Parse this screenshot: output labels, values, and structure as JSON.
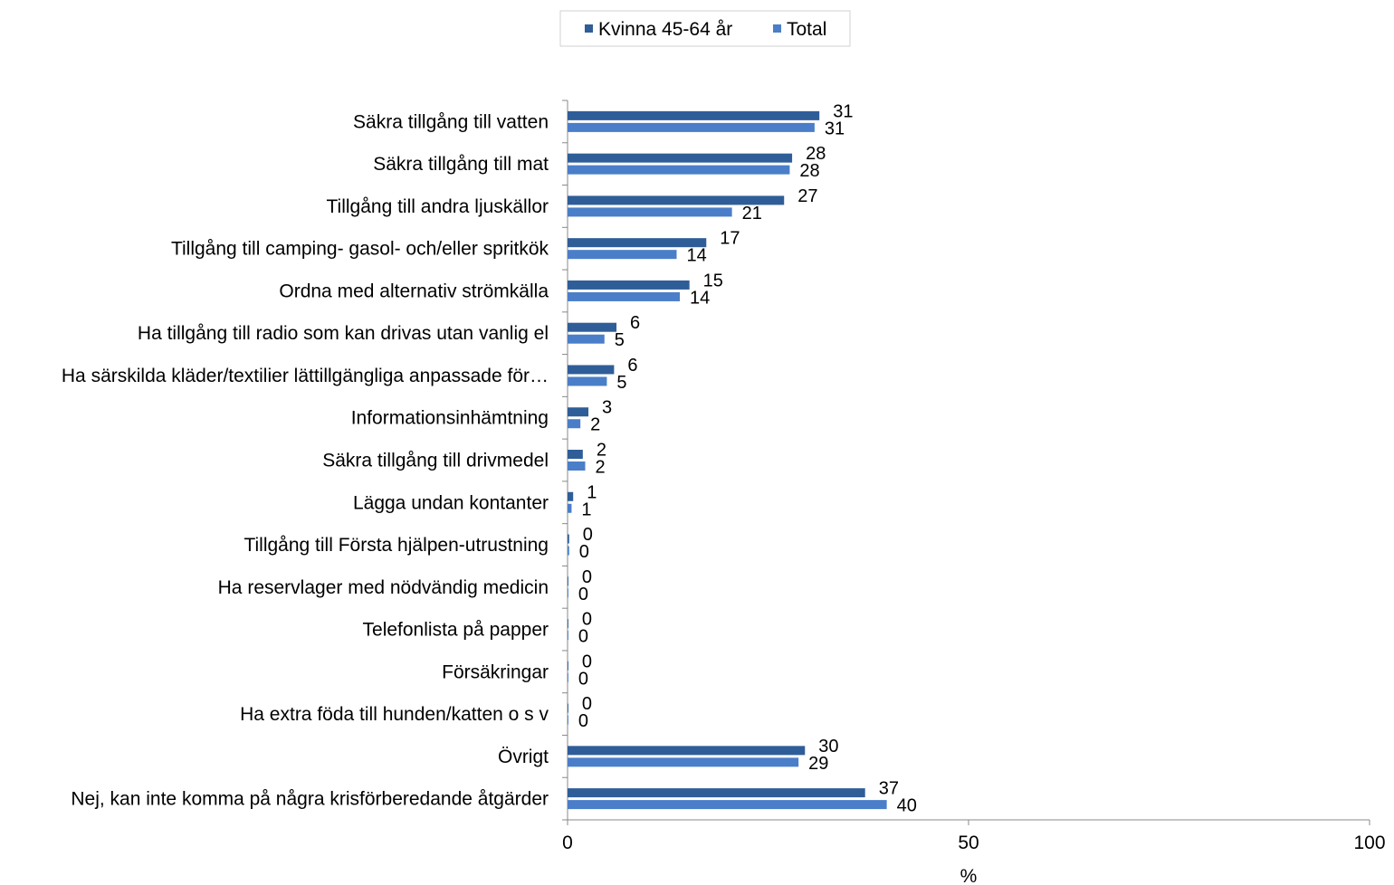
{
  "chart_data": {
    "type": "bar",
    "orientation": "horizontal",
    "categories": [
      "Säkra tillgång till vatten",
      "Säkra tillgång till mat",
      "Tillgång till andra ljuskällor",
      "Tillgång till camping- gasol- och/eller spritkök",
      "Ordna med alternativ strömkälla",
      "Ha tillgång till radio som kan drivas utan vanlig el",
      "Ha särskilda kläder/textilier lättillgängliga anpassade för…",
      "Informationsinhämtning",
      "Säkra tillgång till drivmedel",
      "Lägga undan kontanter",
      "Tillgång till Första hjälpen-utrustning",
      "Ha reservlager med nödvändig medicin",
      "Telefonlista på papper",
      "Försäkringar",
      "Ha extra föda till hunden/katten o s v",
      "Övrigt",
      "Nej, kan inte komma på några krisförberedande åtgärder"
    ],
    "series": [
      {
        "name": "Kvinna 45-64 år",
        "color": "#2f5d98",
        "values": [
          31.4,
          28.0,
          27.0,
          17.3,
          15.2,
          6.1,
          5.8,
          2.6,
          1.9,
          0.7,
          0.2,
          0.1,
          0.1,
          0.1,
          0.1,
          29.6,
          37.1
        ],
        "labels": [
          "31",
          "28",
          "27",
          "17",
          "15",
          "6",
          "6",
          "3",
          "2",
          "1",
          "0",
          "0",
          "0",
          "0",
          "0",
          "30",
          "37"
        ]
      },
      {
        "name": "Total",
        "color": "#4a7ec8",
        "values": [
          30.8,
          27.7,
          20.5,
          13.6,
          14.0,
          4.6,
          4.9,
          1.6,
          2.2,
          0.5,
          0.2,
          0.1,
          0.1,
          0.1,
          0.1,
          28.8,
          39.8
        ],
        "labels": [
          "31",
          "28",
          "21",
          "14",
          "14",
          "5",
          "5",
          "2",
          "2",
          "1",
          "0",
          "0",
          "0",
          "0",
          "0",
          "29",
          "40"
        ]
      }
    ],
    "xlabel": "%",
    "xlim": [
      0,
      100
    ],
    "xticks": [
      "0",
      "50",
      "100"
    ],
    "legend": "top",
    "grid": false
  }
}
